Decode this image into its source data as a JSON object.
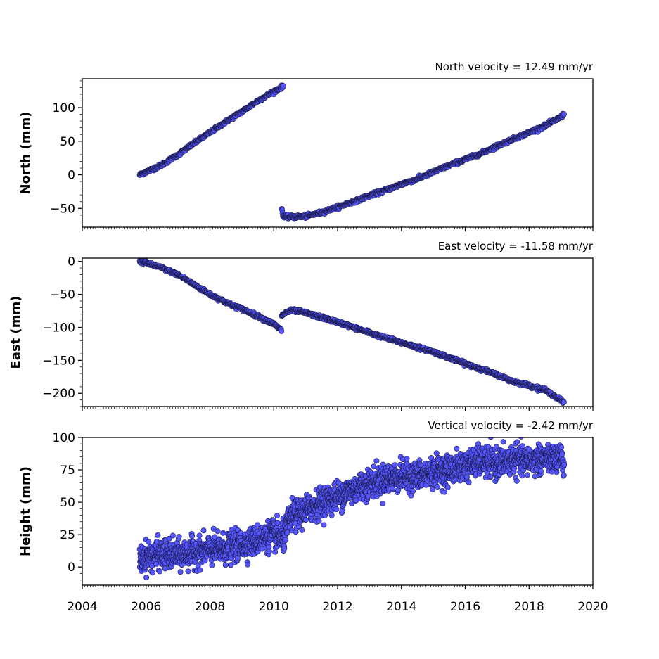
{
  "colors": {
    "marker_fill": "#5555ff",
    "marker_edge": "#1a1a4a",
    "axes": "#000000",
    "background": "#ffffff"
  },
  "chart_data": [
    {
      "type": "scatter",
      "title": "North velocity = 12.49 mm/yr",
      "ylabel": "North (mm)",
      "xlabel": "",
      "xlim": [
        2004,
        2020
      ],
      "ylim": [
        -78,
        143
      ],
      "yticks": [
        -50,
        0,
        50,
        100
      ],
      "ytick_labels": [
        "−50",
        "0",
        "50",
        "100"
      ],
      "grid": false,
      "x_tick_labels_shown": false,
      "series": [
        {
          "x": [
            2005.8,
            2006.5,
            2007.0,
            2007.5,
            2008.0,
            2008.5,
            2009.0,
            2009.5,
            2010.0,
            2010.3
          ],
          "y": [
            0,
            15,
            30,
            47,
            63,
            79,
            94,
            110,
            124,
            132
          ]
        },
        {
          "x": [
            2010.25,
            2010.3,
            2010.5,
            2011.0,
            2011.5,
            2012.0,
            2012.5,
            2013.0,
            2013.5,
            2014.0,
            2014.5,
            2015.0,
            2015.5,
            2016.0,
            2016.5,
            2017.0,
            2017.5,
            2018.0,
            2018.5,
            2019.0,
            2019.1
          ],
          "y": [
            -50,
            -62,
            -63,
            -62,
            -56,
            -48,
            -40,
            -31,
            -23,
            -14,
            -6,
            4,
            14,
            23,
            32,
            43,
            53,
            63,
            73,
            86,
            91
          ]
        }
      ]
    },
    {
      "type": "scatter",
      "title": "East velocity = -11.58 mm/yr",
      "ylabel": "East (mm)",
      "xlabel": "",
      "xlim": [
        2004,
        2020
      ],
      "ylim": [
        -220,
        5
      ],
      "yticks": [
        -200,
        -150,
        -100,
        -50,
        0
      ],
      "ytick_labels": [
        "−200",
        "−150",
        "−100",
        "−50",
        "0"
      ],
      "grid": false,
      "x_tick_labels_shown": false,
      "series": [
        {
          "x": [
            2005.8,
            2006.0,
            2006.5,
            2007.0,
            2007.5,
            2008.0,
            2008.5,
            2009.0,
            2009.5,
            2010.0,
            2010.25
          ],
          "y": [
            0,
            -2,
            -10,
            -20,
            -35,
            -50,
            -62,
            -72,
            -83,
            -95,
            -105
          ]
        },
        {
          "x": [
            2010.25,
            2010.4,
            2010.6,
            2011.0,
            2011.5,
            2012.0,
            2012.5,
            2013.0,
            2013.5,
            2014.0,
            2014.5,
            2015.0,
            2015.5,
            2016.0,
            2016.5,
            2017.0,
            2017.5,
            2018.0,
            2018.5,
            2019.0,
            2019.1
          ],
          "y": [
            -82,
            -77,
            -74,
            -78,
            -85,
            -92,
            -100,
            -108,
            -116,
            -123,
            -130,
            -137,
            -146,
            -155,
            -163,
            -172,
            -182,
            -188,
            -195,
            -210,
            -215
          ]
        }
      ]
    },
    {
      "type": "scatter",
      "title": "Vertical velocity = -2.42 mm/yr",
      "ylabel": "Height (mm)",
      "xlabel": "",
      "xlim": [
        2004,
        2020
      ],
      "ylim": [
        -14,
        100
      ],
      "yticks": [
        0,
        25,
        50,
        75,
        100
      ],
      "ytick_labels": [
        "0",
        "25",
        "50",
        "75",
        "100"
      ],
      "grid": false,
      "xticks": [
        2004,
        2006,
        2008,
        2010,
        2012,
        2014,
        2016,
        2018,
        2020
      ],
      "xtick_labels": [
        "2004",
        "2006",
        "2008",
        "2010",
        "2012",
        "2014",
        "2016",
        "2018",
        "2020"
      ],
      "x_tick_labels_shown": true,
      "series": [
        {
          "x": [
            2005.8,
            2006.0,
            2006.5,
            2007.0,
            2007.5,
            2008.0,
            2008.5,
            2009.0,
            2009.5,
            2010.0,
            2010.3,
            2010.5,
            2011.0,
            2011.5,
            2012.0,
            2012.5,
            2013.0,
            2013.5,
            2014.0,
            2014.5,
            2015.0,
            2015.5,
            2016.0,
            2016.5,
            2017.0,
            2017.5,
            2018.0,
            2018.5,
            2019.0,
            2019.1
          ],
          "y": [
            5,
            8,
            10,
            9,
            11,
            13,
            14,
            17,
            21,
            25,
            22,
            38,
            44,
            50,
            55,
            60,
            65,
            68,
            70,
            70,
            73,
            75,
            78,
            82,
            80,
            83,
            82,
            84,
            83,
            78
          ]
        }
      ]
    }
  ]
}
